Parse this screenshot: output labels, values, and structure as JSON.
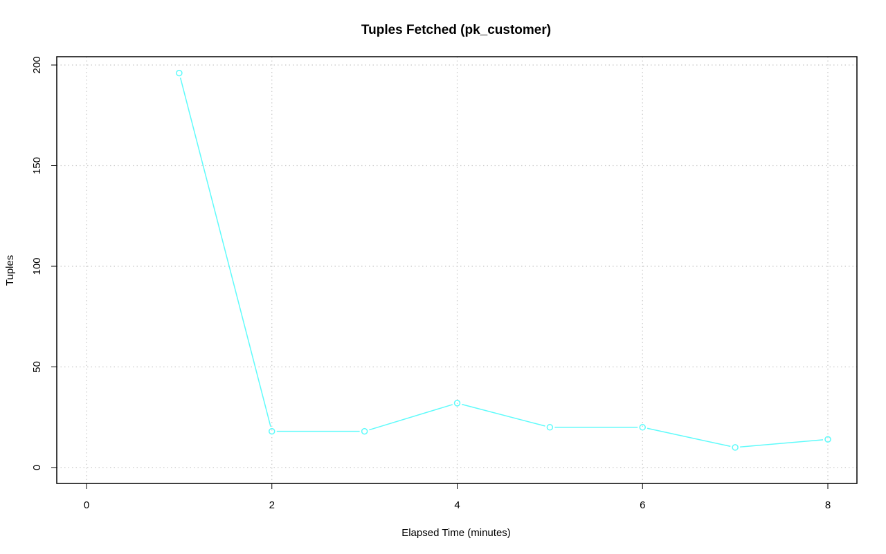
{
  "chart_data": {
    "type": "line",
    "title": "Tuples Fetched (pk_customer)",
    "xlabel": "Elapsed Time (minutes)",
    "ylabel": "Tuples",
    "xlim": [
      0,
      8
    ],
    "ylim": [
      0,
      200
    ],
    "x_ticks": [
      0,
      2,
      4,
      6,
      8
    ],
    "y_ticks": [
      0,
      50,
      100,
      150,
      200
    ],
    "grid": true,
    "series": [
      {
        "color": "#5ffbfb",
        "marker": "open-circle",
        "x": [
          1,
          2,
          3,
          4,
          5,
          6,
          7,
          8
        ],
        "y": [
          196,
          18,
          18,
          32,
          20,
          20,
          10,
          14
        ]
      }
    ]
  }
}
